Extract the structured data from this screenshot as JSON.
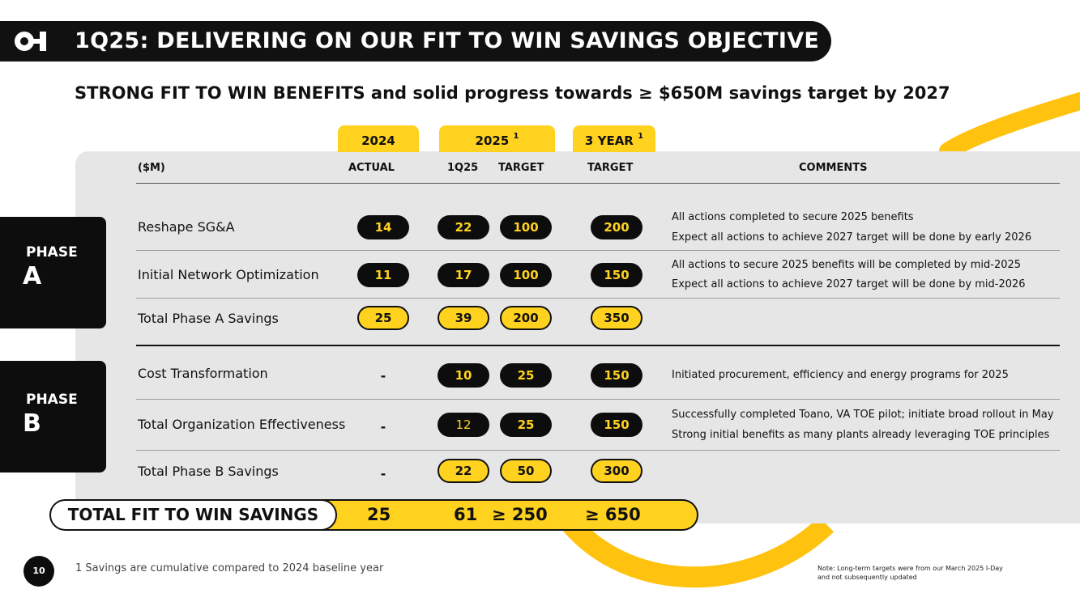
{
  "header": {
    "logo_icon": "company-logo-icon",
    "title": "1Q25: DELIVERING ON OUR FIT TO WIN SAVINGS OBJECTIVE"
  },
  "subtitle": {
    "lead": "STRONG FIT TO WIN BENEFITS",
    "rest": " and solid progress towards ≥ $650M savings target by 2027"
  },
  "colors": {
    "accent": "#ffd21f",
    "dark": "#0d0d0d",
    "panel": "#e6e6e6"
  },
  "table": {
    "tabs": {
      "y2024": "2024",
      "y2025": "2025",
      "y2025_note": "1",
      "three_year": "3 YEAR",
      "three_year_note": "1"
    },
    "headers": {
      "units": "($M)",
      "actual": "ACTUAL",
      "q1": "1Q25",
      "target": "TARGET",
      "target3": "TARGET",
      "comments": "COMMENTS"
    },
    "phase_a": {
      "word": "PHASE",
      "letter": "A",
      "rows": [
        {
          "label": "Reshape SG&A",
          "actual": "14",
          "q1": "22",
          "target": "100",
          "target3": "200",
          "comment_1": "All actions completed to secure 2025 benefits",
          "comment_2": "Expect all actions to achieve 2027 target will be done by early 2026"
        },
        {
          "label": "Initial Network Optimization",
          "actual": "11",
          "q1": "17",
          "target": "100",
          "target3": "150",
          "comment_1": "All actions to secure 2025 benefits will be completed by mid-2025",
          "comment_2": "Expect all actions to achieve 2027 target will be done by mid-2026"
        },
        {
          "label": "Total Phase A Savings",
          "actual": "25",
          "q1": "39",
          "target": "200",
          "target3": "350"
        }
      ]
    },
    "phase_b": {
      "word": "PHASE",
      "letter": "B",
      "rows": [
        {
          "label": "Cost Transformation",
          "actual": "-",
          "q1": "10",
          "target": "25",
          "target3": "150",
          "comment_1": "Initiated procurement, efficiency and energy programs for 2025"
        },
        {
          "label": "Total Organization Effectiveness",
          "actual": "-",
          "q1": "12",
          "target": "25",
          "target3": "150",
          "comment_1": "Successfully completed Toano, VA TOE pilot; initiate broad rollout in May",
          "comment_2": "Strong initial benefits as many plants already leveraging TOE principles"
        },
        {
          "label": "Total Phase B Savings",
          "actual": "-",
          "q1": "22",
          "target": "50",
          "target3": "300"
        }
      ]
    },
    "total": {
      "label": "TOTAL FIT TO WIN SAVINGS",
      "actual": "25",
      "q1": "61",
      "target": "≥ 250",
      "target3": "≥ 650"
    }
  },
  "footer": {
    "page_number": "10",
    "footnote": "1 Savings are cumulative compared to 2024 baseline year",
    "note_line1": "Note: Long-term targets were from our March 2025 I-Day",
    "note_line2": "and not subsequently updated"
  }
}
